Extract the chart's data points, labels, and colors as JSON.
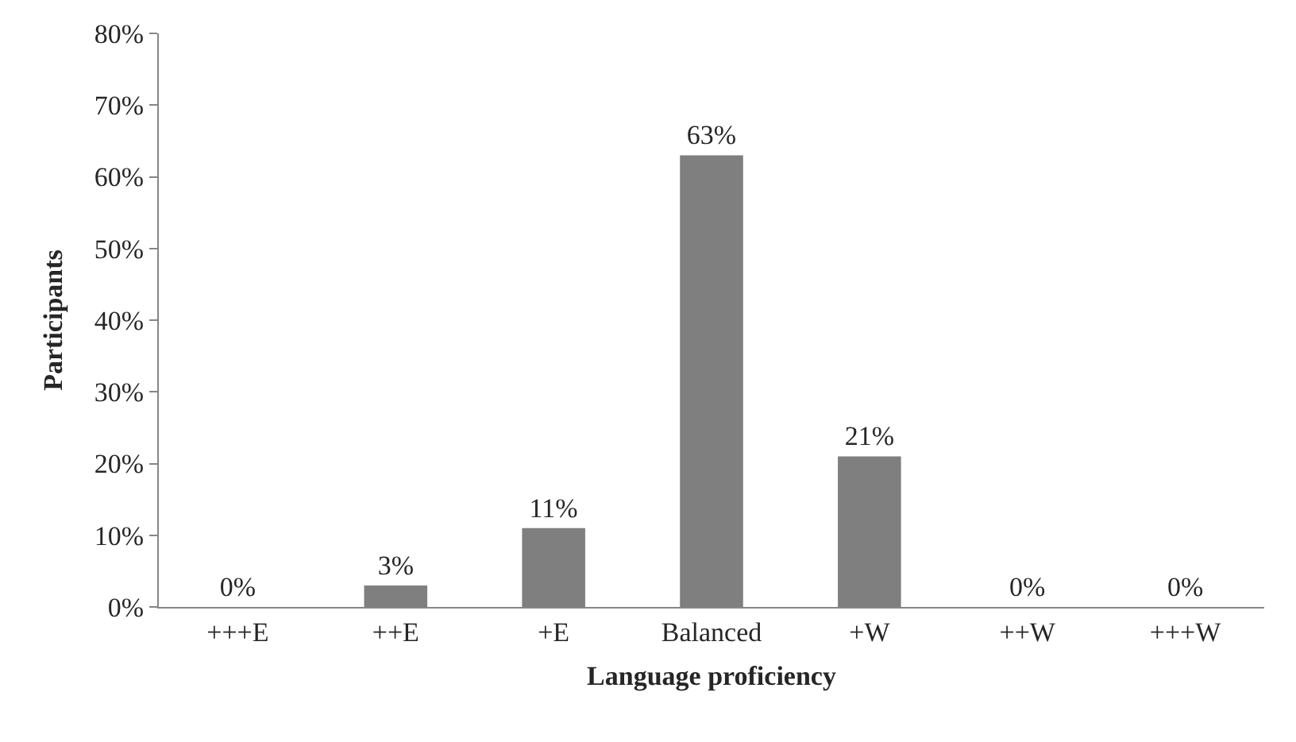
{
  "chart_data": {
    "type": "bar",
    "xlabel": "Language proficiency",
    "ylabel": "Participants",
    "categories": [
      "+++E",
      "++E",
      "+E",
      "Balanced",
      "+W",
      "++W",
      "+++W"
    ],
    "values": [
      0,
      3,
      11,
      63,
      21,
      0,
      0
    ],
    "value_labels": [
      "0%",
      "3%",
      "11%",
      "63%",
      "21%",
      "0%",
      "0%"
    ],
    "color": "#7f7f7f",
    "ylim": [
      0,
      80
    ],
    "yticks": [
      {
        "value": 0,
        "label": "0%"
      },
      {
        "value": 10,
        "label": "10%"
      },
      {
        "value": 20,
        "label": "20%"
      },
      {
        "value": 30,
        "label": "30%"
      },
      {
        "value": 40,
        "label": "40%"
      },
      {
        "value": 50,
        "label": "50%"
      },
      {
        "value": 60,
        "label": "60%"
      },
      {
        "value": 70,
        "label": "70%"
      },
      {
        "value": 80,
        "label": "80%"
      }
    ],
    "grid": false,
    "legend": false
  }
}
